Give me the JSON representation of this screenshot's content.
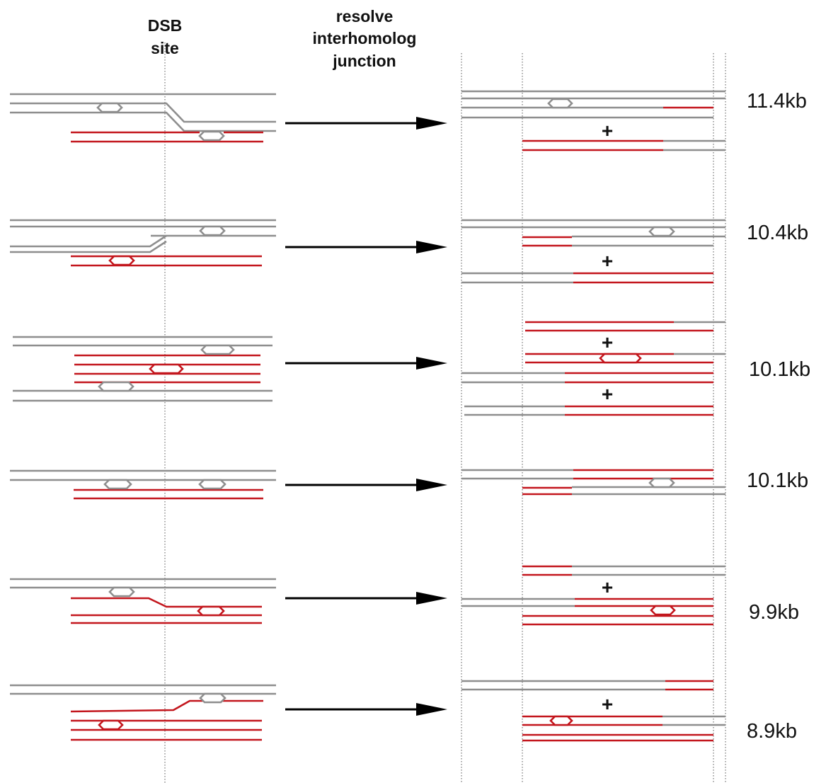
{
  "header": {
    "dsb_label": [
      "DSB",
      "site"
    ],
    "step_label": [
      "resolve",
      "interhomolog",
      "junction"
    ]
  },
  "rows": [
    {
      "plus": [
        "+"
      ],
      "size": "11.4kb"
    },
    {
      "plus": [
        "+"
      ],
      "size": "10.4kb"
    },
    {
      "plus": [
        "+",
        "+"
      ],
      "size": "10.1kb"
    },
    {
      "size": "10.1kb"
    },
    {
      "plus": [
        "+"
      ],
      "size": "9.9kb"
    },
    {
      "plus": [
        "+"
      ],
      "size": "8.9kb"
    }
  ]
}
